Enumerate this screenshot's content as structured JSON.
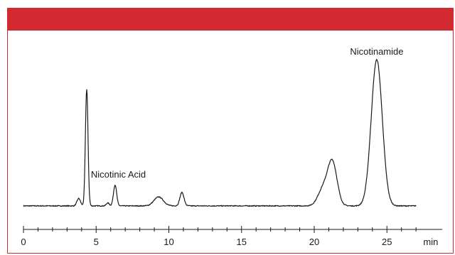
{
  "chart_data": {
    "type": "line",
    "title": "",
    "xlabel": "min",
    "ylabel": "",
    "xlim": [
      0,
      29
    ],
    "ylim": [
      0,
      100
    ],
    "grid": false,
    "x_ticks_major": [
      0,
      5,
      10,
      15,
      20,
      25
    ],
    "x_tick_labels": [
      "0",
      "5",
      "10",
      "15",
      "20",
      "25"
    ],
    "baseline": 1.5,
    "annotations": [
      {
        "label": "Nicotinic Acid",
        "x": 6.3
      },
      {
        "label": "Nicotinamide",
        "x": 24.3
      }
    ],
    "peaks": [
      {
        "rt": 3.8,
        "height": 5,
        "width": 0.12
      },
      {
        "rt": 4.35,
        "height": 78,
        "width": 0.09
      },
      {
        "rt": 5.8,
        "height": 2,
        "width": 0.1
      },
      {
        "rt": 6.3,
        "height": 14,
        "width": 0.11
      },
      {
        "rt": 9.3,
        "height": 6,
        "width": 0.32
      },
      {
        "rt": 10.9,
        "height": 9,
        "width": 0.14
      },
      {
        "rt": 20.6,
        "height": 11,
        "width": 0.35
      },
      {
        "rt": 21.25,
        "height": 29,
        "width": 0.32
      },
      {
        "rt": 24.3,
        "height": 98,
        "width": 0.38
      }
    ],
    "series": [
      {
        "color": "#1a1a1a"
      }
    ]
  },
  "colors": {
    "header": "#d22a30",
    "border": "#d22a30",
    "trace": "#1a1a1a"
  }
}
